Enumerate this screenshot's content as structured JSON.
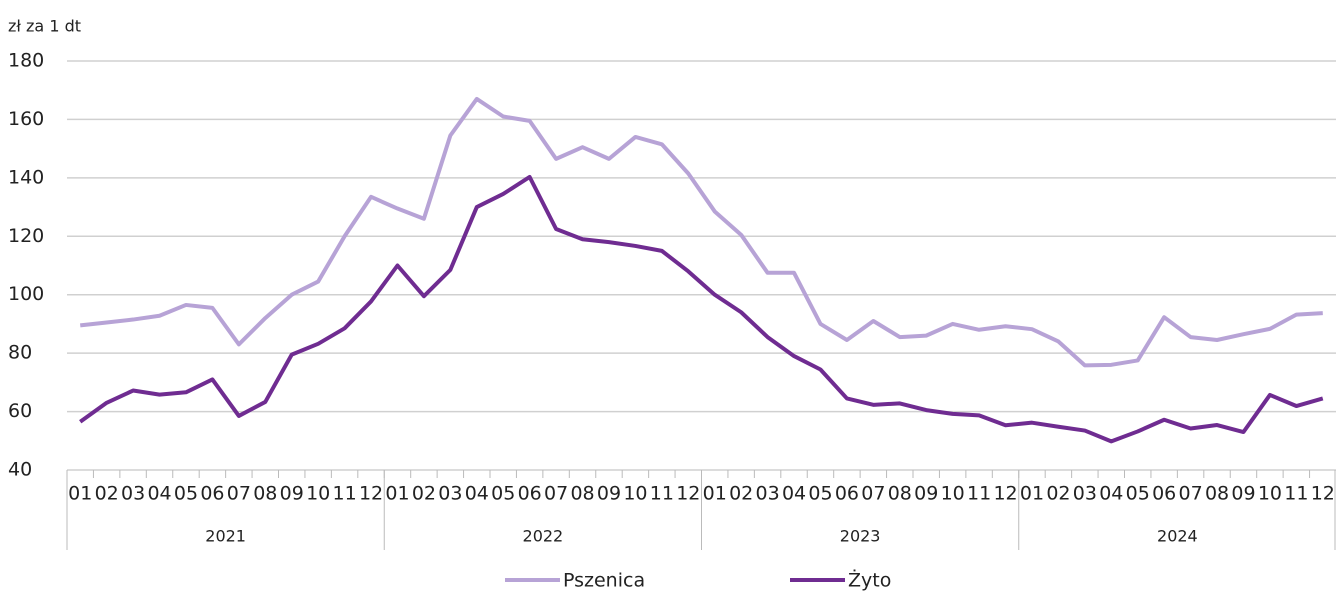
{
  "chart_data": {
    "type": "line",
    "y_axis_label": "zł za 1 dt",
    "categories": [
      "01",
      "02",
      "03",
      "04",
      "05",
      "06",
      "07",
      "08",
      "09",
      "10",
      "11",
      "12",
      "01",
      "02",
      "03",
      "04",
      "05",
      "06",
      "07",
      "08",
      "09",
      "10",
      "11",
      "12",
      "01",
      "02",
      "03",
      "04",
      "05",
      "06",
      "07",
      "08",
      "09",
      "10",
      "11",
      "12",
      "01",
      "02",
      "03",
      "04",
      "05",
      "06",
      "07",
      "08",
      "09",
      "10",
      "11",
      "12"
    ],
    "category_groups": [
      "2021",
      "2022",
      "2023",
      "2024"
    ],
    "series": [
      {
        "name": "Pszenica",
        "color": "#b7a3d6",
        "values": [
          89.5,
          90.5,
          91.5,
          92.8,
          96.5,
          95.5,
          83,
          92,
          100,
          104.5,
          120,
          133.5,
          129.5,
          126,
          154.5,
          167,
          161,
          159.5,
          146.5,
          150.5,
          146.5,
          154,
          151.5,
          141.5,
          128.5,
          120.5,
          107.5,
          107.5,
          90,
          84.5,
          91,
          85.5,
          86,
          90,
          88,
          89.2,
          88.2,
          84,
          75.8,
          76,
          77.5,
          92.3,
          85.5,
          84.5,
          86.5,
          88.3,
          93.2,
          93.7
        ]
      },
      {
        "name": "Żyto",
        "color": "#6f2c91",
        "values": [
          56.5,
          63,
          67.2,
          65.8,
          66.6,
          71,
          58.5,
          63.3,
          79.5,
          83.2,
          88.5,
          97.7,
          110,
          99.5,
          108.5,
          130,
          134.5,
          140.3,
          122.5,
          119,
          118,
          116.7,
          115,
          108,
          100,
          94,
          85.5,
          79,
          74.4,
          64.5,
          62.3,
          62.8,
          60.5,
          59.2,
          58.7,
          55.3,
          56.2,
          54.8,
          53.5,
          49.8,
          53.2,
          57.2,
          54.2,
          55.4,
          53,
          65.7,
          61.9,
          64.5
        ]
      }
    ],
    "ylim": [
      40,
      180
    ],
    "yticks": [
      40,
      60,
      80,
      100,
      120,
      140,
      160,
      180
    ],
    "grid": true,
    "legend": "bottom"
  }
}
